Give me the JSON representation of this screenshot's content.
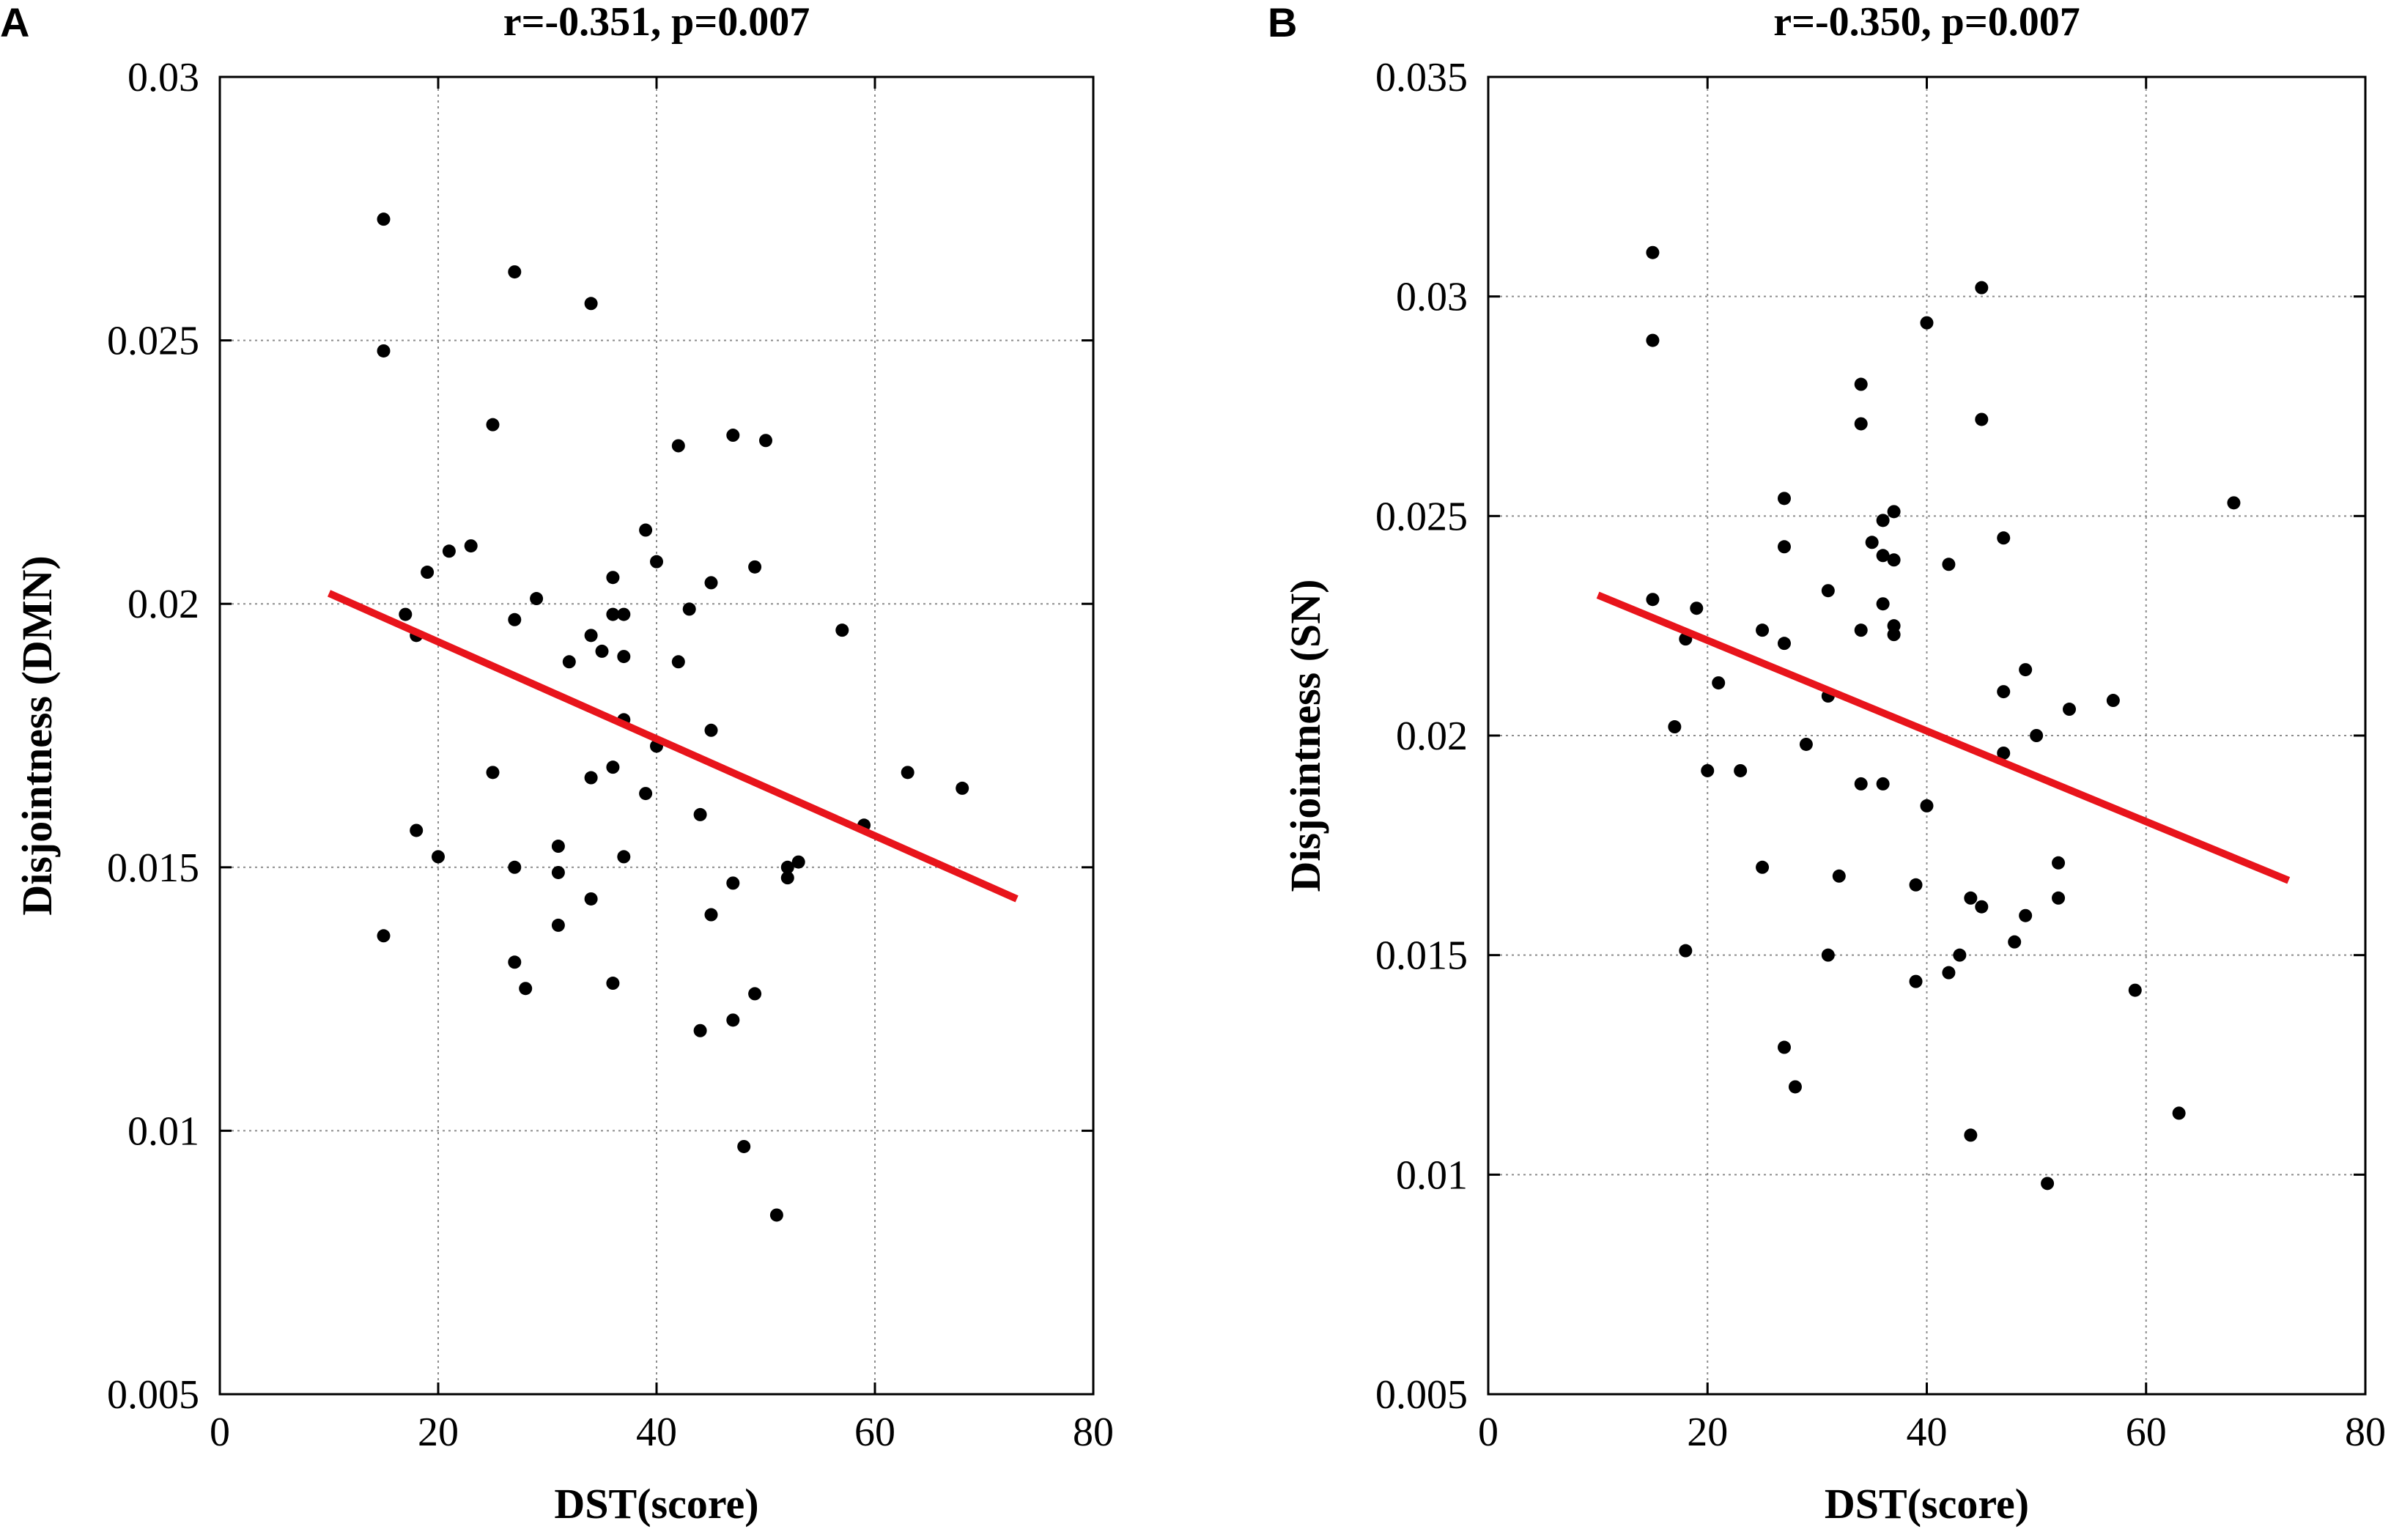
{
  "chart_data": [
    {
      "type": "scatter",
      "panel": "A",
      "title": "r=-0.351, p=0.007",
      "xlabel": "DST(score)",
      "ylabel": "Disjointness (DMN)",
      "xlim": [
        0,
        80
      ],
      "ylim": [
        0.005,
        0.03
      ],
      "xticks": [
        0,
        20,
        40,
        60,
        80
      ],
      "yticks": [
        0.005,
        0.01,
        0.015,
        0.02,
        0.025,
        0.03
      ],
      "xtick_labels": [
        "0",
        "20",
        "40",
        "60",
        "80"
      ],
      "ytick_labels": [
        "0.005",
        "0.01",
        "0.015",
        "0.02",
        "0.025",
        "0.03"
      ],
      "grid": true,
      "fit_line": {
        "x": [
          10,
          73
        ],
        "y": [
          0.0202,
          0.0144
        ],
        "color": "#e8141b"
      },
      "points": [
        [
          15,
          0.0273
        ],
        [
          15,
          0.0248
        ],
        [
          15,
          0.0137
        ],
        [
          17,
          0.0198
        ],
        [
          18,
          0.0194
        ],
        [
          18,
          0.0157
        ],
        [
          19,
          0.0206
        ],
        [
          20,
          0.0152
        ],
        [
          21,
          0.021
        ],
        [
          23,
          0.0211
        ],
        [
          25,
          0.0234
        ],
        [
          25,
          0.0168
        ],
        [
          27,
          0.0263
        ],
        [
          27,
          0.0197
        ],
        [
          27,
          0.015
        ],
        [
          27,
          0.0132
        ],
        [
          28,
          0.0127
        ],
        [
          29,
          0.0201
        ],
        [
          31,
          0.0154
        ],
        [
          31,
          0.0149
        ],
        [
          31,
          0.0139
        ],
        [
          32,
          0.0189
        ],
        [
          34,
          0.0257
        ],
        [
          34,
          0.0194
        ],
        [
          34,
          0.0167
        ],
        [
          34,
          0.0144
        ],
        [
          35,
          0.0191
        ],
        [
          36,
          0.0205
        ],
        [
          36,
          0.0198
        ],
        [
          36,
          0.0169
        ],
        [
          36,
          0.0128
        ],
        [
          37,
          0.0198
        ],
        [
          37,
          0.019
        ],
        [
          37,
          0.0178
        ],
        [
          37,
          0.0152
        ],
        [
          39,
          0.0214
        ],
        [
          39,
          0.0164
        ],
        [
          40,
          0.0208
        ],
        [
          40,
          0.0173
        ],
        [
          42,
          0.023
        ],
        [
          42,
          0.0189
        ],
        [
          43,
          0.0199
        ],
        [
          44,
          0.016
        ],
        [
          44,
          0.0119
        ],
        [
          45,
          0.0204
        ],
        [
          45,
          0.0176
        ],
        [
          45,
          0.0141
        ],
        [
          47,
          0.0232
        ],
        [
          47,
          0.0147
        ],
        [
          47,
          0.0121
        ],
        [
          48,
          0.0097
        ],
        [
          49,
          0.0207
        ],
        [
          49,
          0.0126
        ],
        [
          50,
          0.0231
        ],
        [
          51,
          0.0084
        ],
        [
          52,
          0.015
        ],
        [
          52,
          0.0148
        ],
        [
          53,
          0.0151
        ],
        [
          57,
          0.0195
        ],
        [
          59,
          0.0158
        ],
        [
          63,
          0.0168
        ],
        [
          68,
          0.0165
        ]
      ]
    },
    {
      "type": "scatter",
      "panel": "B",
      "title": "r=-0.350, p=0.007",
      "xlabel": "DST(score)",
      "ylabel": "Disjointness (SN)",
      "xlim": [
        0,
        80
      ],
      "ylim": [
        0.005,
        0.035
      ],
      "xticks": [
        0,
        20,
        40,
        60,
        80
      ],
      "yticks": [
        0.005,
        0.01,
        0.015,
        0.02,
        0.025,
        0.03,
        0.035
      ],
      "xtick_labels": [
        "0",
        "20",
        "40",
        "60",
        "80"
      ],
      "ytick_labels": [
        "0.005",
        "0.01",
        "0.015",
        "0.02",
        "0.025",
        "0.03",
        "0.035"
      ],
      "grid": true,
      "fit_line": {
        "x": [
          10,
          73
        ],
        "y": [
          0.0232,
          0.0167
        ],
        "color": "#e8141b"
      },
      "points": [
        [
          15,
          0.031
        ],
        [
          15,
          0.029
        ],
        [
          15,
          0.0231
        ],
        [
          17,
          0.0202
        ],
        [
          18,
          0.0222
        ],
        [
          18,
          0.0151
        ],
        [
          19,
          0.0229
        ],
        [
          20,
          0.0192
        ],
        [
          21,
          0.0212
        ],
        [
          23,
          0.0192
        ],
        [
          25,
          0.0224
        ],
        [
          25,
          0.017
        ],
        [
          27,
          0.0254
        ],
        [
          27,
          0.0243
        ],
        [
          27,
          0.0221
        ],
        [
          27,
          0.0129
        ],
        [
          28,
          0.012
        ],
        [
          29,
          0.0198
        ],
        [
          31,
          0.0233
        ],
        [
          31,
          0.0209
        ],
        [
          31,
          0.015
        ],
        [
          32,
          0.0168
        ],
        [
          34,
          0.028
        ],
        [
          34,
          0.0271
        ],
        [
          34,
          0.0224
        ],
        [
          34,
          0.0189
        ],
        [
          35,
          0.0244
        ],
        [
          36,
          0.0249
        ],
        [
          36,
          0.0241
        ],
        [
          36,
          0.023
        ],
        [
          36,
          0.0189
        ],
        [
          37,
          0.0251
        ],
        [
          37,
          0.024
        ],
        [
          37,
          0.0225
        ],
        [
          37,
          0.0223
        ],
        [
          39,
          0.0166
        ],
        [
          39,
          0.0144
        ],
        [
          40,
          0.0294
        ],
        [
          40,
          0.0184
        ],
        [
          42,
          0.0239
        ],
        [
          42,
          0.0146
        ],
        [
          43,
          0.015
        ],
        [
          44,
          0.0163
        ],
        [
          44,
          0.0109
        ],
        [
          45,
          0.0302
        ],
        [
          45,
          0.0272
        ],
        [
          45,
          0.0161
        ],
        [
          47,
          0.0245
        ],
        [
          47,
          0.021
        ],
        [
          47,
          0.0196
        ],
        [
          48,
          0.0153
        ],
        [
          49,
          0.0215
        ],
        [
          49,
          0.0159
        ],
        [
          50,
          0.02
        ],
        [
          51,
          0.0098
        ],
        [
          52,
          0.0171
        ],
        [
          52,
          0.0163
        ],
        [
          53,
          0.0206
        ],
        [
          57,
          0.0208
        ],
        [
          59,
          0.0142
        ],
        [
          63,
          0.0114
        ],
        [
          68,
          0.0253
        ]
      ]
    }
  ]
}
